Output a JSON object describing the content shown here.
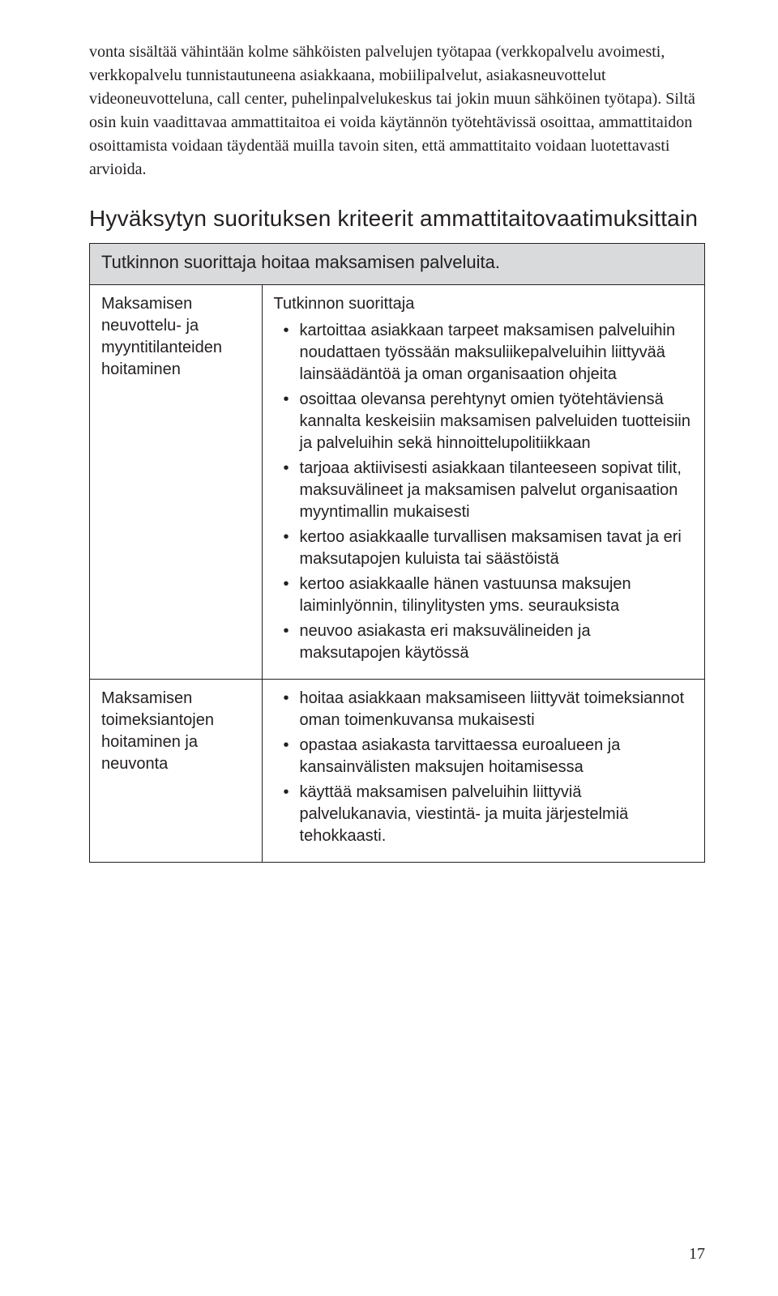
{
  "intro_paragraph": "vonta sisältää vähintään kolme sähköisten palvelujen työtapaa (verkkopalvelu avoimesti, verkkopalvelu tunnistautuneena asiakkaana, mobiilipalvelut, asiakasneuvottelut videoneuvotteluna, call center, puhelinpalvelukeskus tai jokin muun sähköinen työtapa). Siltä osin kuin vaadittavaa ammattitaitoa ei voida käytännön työtehtävissä osoittaa, ammattitaidon osoittamista voidaan täydentää muilla tavoin siten, että ammattitaito voidaan luotettavasti arvioida.",
  "section_heading": "Hyväksytyn suorituksen kriteerit ammattitaitovaatimuksittain",
  "table": {
    "header": "Tutkinnon suorittaja hoitaa maksamisen palveluita.",
    "rows": [
      {
        "left": "Maksamisen neuvottelu- ja myyntitilanteiden hoitaminen",
        "intro": "Tutkinnon suorittaja",
        "bullets": [
          "kartoittaa asiakkaan tarpeet maksamisen palveluihin noudattaen työssään maksuliikepalveluihin liittyvää lainsäädäntöä ja oman organisaation ohjeita",
          "osoittaa olevansa perehtynyt omien työtehtäviensä kannalta keskeisiin maksamisen palveluiden tuotteisiin ja palveluihin sekä hinnoittelupolitiikkaan",
          "tarjoaa aktiivisesti asiakkaan tilanteeseen sopivat tilit, maksuvälineet ja maksamisen palvelut organisaation myyntimallin mukaisesti",
          "kertoo asiakkaalle turvallisen maksamisen tavat ja eri maksutapojen kuluista tai säästöistä",
          "kertoo asiakkaalle hänen vastuunsa maksujen laiminlyönnin, tilinylitysten yms. seurauksista",
          "neuvoo asiakasta eri maksuvälineiden ja maksutapojen käytössä"
        ]
      },
      {
        "left": "Maksamisen toimeksiantojen hoitaminen ja neuvonta",
        "intro": "",
        "bullets": [
          "hoitaa asiakkaan maksamiseen liittyvät toimeksiannot oman toimenkuvansa mukaisesti",
          "opastaa asiakasta tarvittaessa euroalueen ja kansainvälisten maksujen hoitamisessa",
          "käyttää maksamisen palveluihin liittyviä palvelukanavia, viestintä- ja muita järjestelmiä tehokkaasti."
        ]
      }
    ]
  },
  "page_number": "17"
}
